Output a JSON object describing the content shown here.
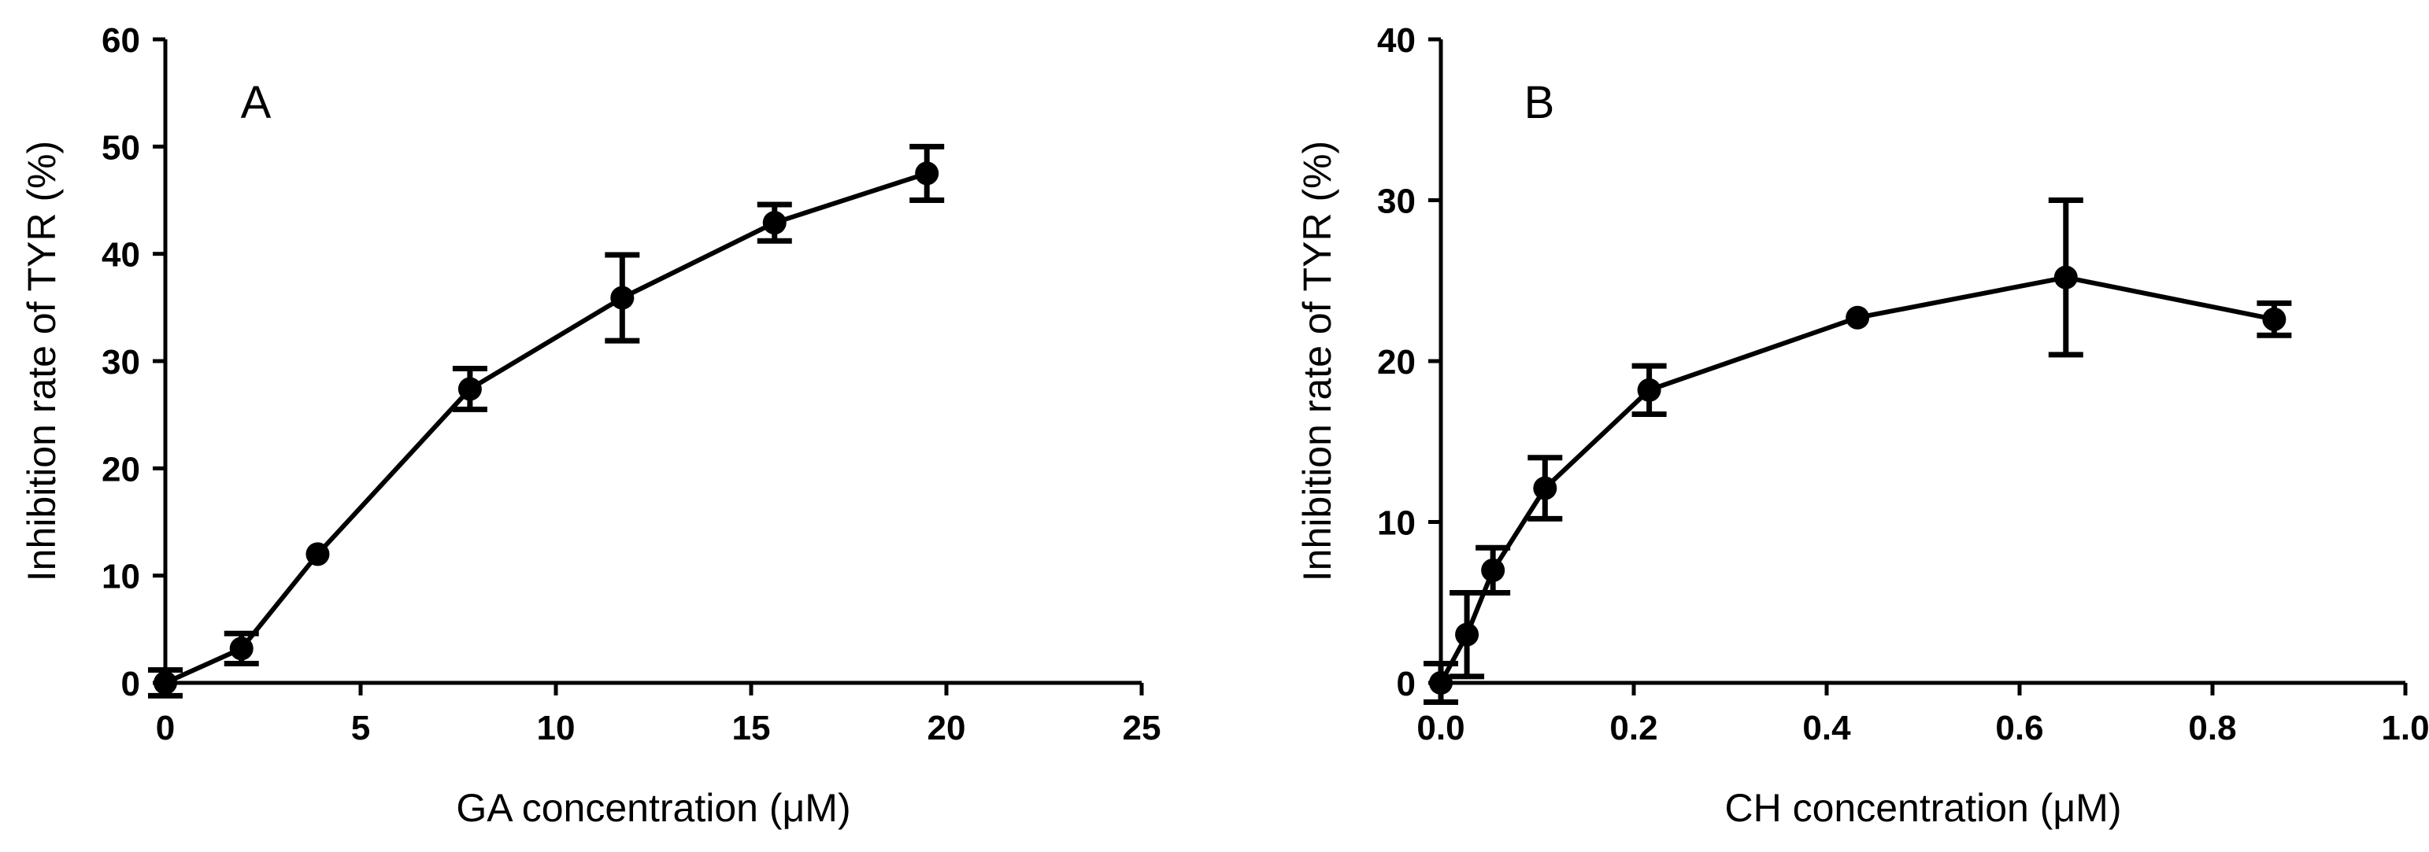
{
  "chart_data": [
    {
      "type": "line",
      "panel_label": "A",
      "xlabel": "GA concentration (μM)",
      "ylabel": "Inhibition rate of TYR (%)",
      "xlim": [
        0,
        25
      ],
      "ylim": [
        0,
        60
      ],
      "xticks": [
        0,
        5,
        10,
        15,
        20,
        25
      ],
      "yticks": [
        0,
        10,
        20,
        30,
        40,
        50,
        60
      ],
      "xtick_labels": [
        "0",
        "5",
        "10",
        "15",
        "20",
        "25"
      ],
      "ytick_labels": [
        "0",
        "10",
        "20",
        "30",
        "40",
        "50",
        "60"
      ],
      "grid": false,
      "series": [
        {
          "name": "GA",
          "x": [
            0,
            1.95,
            3.9,
            7.8,
            11.7,
            15.6,
            19.5
          ],
          "y": [
            0,
            3.2,
            12,
            27.4,
            35.9,
            42.9,
            47.5
          ],
          "err": [
            1.2,
            1.4,
            0.3,
            1.9,
            4.0,
            1.7,
            2.5
          ]
        }
      ]
    },
    {
      "type": "line",
      "panel_label": "B",
      "xlabel": "CH concentration (μM)",
      "ylabel": "Inhibition rate of TYR (%)",
      "xlim": [
        0,
        1.0
      ],
      "ylim": [
        0,
        40
      ],
      "xticks": [
        0,
        0.2,
        0.4,
        0.6,
        0.8,
        1.0
      ],
      "yticks": [
        0,
        10,
        20,
        30,
        40
      ],
      "xtick_labels": [
        "0.0",
        "0.2",
        "0.4",
        "0.6",
        "0.8",
        "1.0"
      ],
      "ytick_labels": [
        "0",
        "10",
        "20",
        "30",
        "40"
      ],
      "grid": false,
      "series": [
        {
          "name": "CH",
          "x": [
            0,
            0.027,
            0.054,
            0.108,
            0.216,
            0.432,
            0.648,
            0.864
          ],
          "y": [
            0,
            3,
            7,
            12.1,
            18.2,
            22.7,
            25.2,
            22.6
          ],
          "err": [
            1.2,
            2.6,
            1.4,
            1.9,
            1.5,
            0.2,
            4.8,
            1.0
          ]
        }
      ]
    }
  ]
}
